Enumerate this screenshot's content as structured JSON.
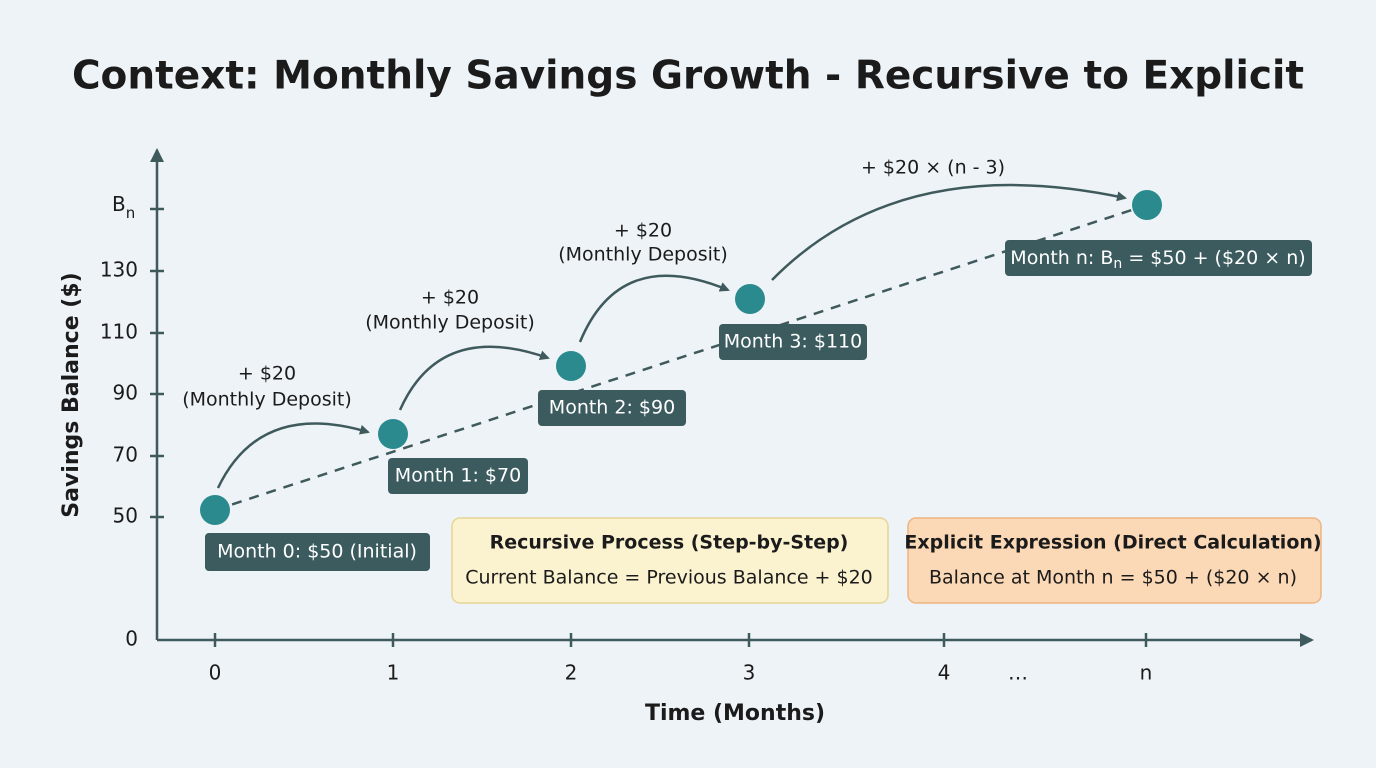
{
  "title": "Context: Monthly Savings Growth - Recursive to Explicit",
  "y_axis": {
    "label": "Savings Balance ($)",
    "ticks": [
      "0",
      "50",
      "70",
      "90",
      "110",
      "130"
    ],
    "top_tick": {
      "text": "B",
      "subscript": "n"
    }
  },
  "x_axis": {
    "label": "Time (Months)",
    "ticks": [
      "0",
      "1",
      "2",
      "3",
      "4",
      "…",
      "n"
    ]
  },
  "points": [
    {
      "label": "Month 0: $50 (Initial)"
    },
    {
      "label": "Month 1: $70"
    },
    {
      "label": "Month 2: $90"
    },
    {
      "label": "Month 3: $110"
    },
    {
      "label": {
        "before": "Month n: B",
        "subscript": "n",
        "after": " = $50 + ($20 × n)"
      }
    }
  ],
  "steps": [
    {
      "amount": "+ $20",
      "note": "(Monthly Deposit)"
    },
    {
      "amount": "+ $20",
      "note": "(Monthly Deposit)"
    },
    {
      "amount": "+ $20",
      "note": "(Monthly Deposit)"
    },
    {
      "amount": "+ $20 × (n - 3)"
    }
  ],
  "boxes": [
    {
      "title": "Recursive Process (Step-by-Step)",
      "text": "Current Balance = Previous Balance + $20"
    },
    {
      "title": "Explicit Expression (Direct Calculation)",
      "text": "Balance at Month n = $50 + ($20 × n)"
    }
  ]
}
